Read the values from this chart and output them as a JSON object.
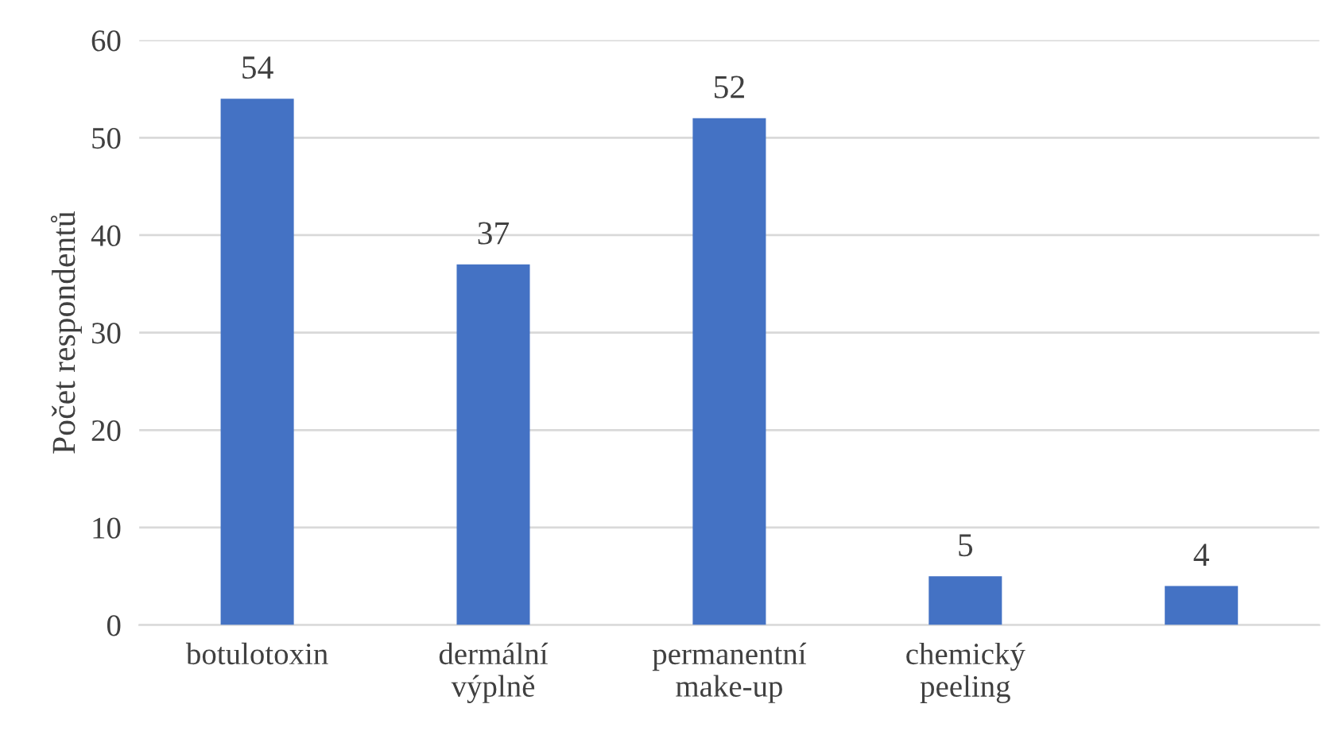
{
  "chart_data": {
    "type": "bar",
    "ylabel": "Počet respondentů",
    "categories": [
      "botulotoxin",
      "dermální\nvýplně",
      "permanentní\nmake-up",
      "chemický\npeeling",
      null
    ],
    "values": [
      54,
      37,
      52,
      5,
      4
    ],
    "color": "#4472c4",
    "ylim": [
      0,
      60
    ],
    "yticks": [
      0,
      10,
      20,
      30,
      40,
      50,
      60
    ],
    "grid": "y",
    "data_labels": true
  }
}
